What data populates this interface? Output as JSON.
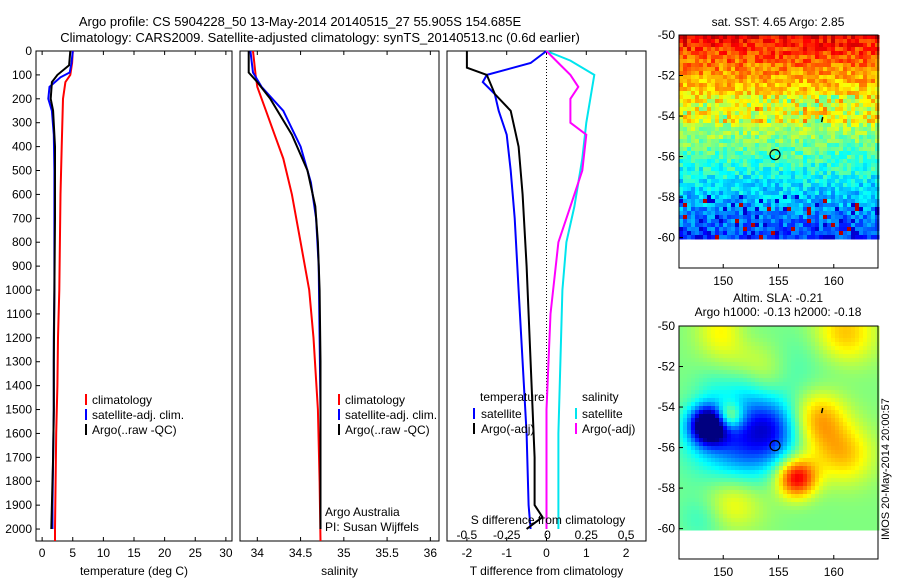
{
  "title_line1": "Argo profile: CS 5904228_50 13-May-2014 20140515_27 55.905S 154.685E",
  "title_line2": "Climatology: CARS2009. Satellite-adjusted climatology: synTS_20140513.nc (0.6d earlier)",
  "credit_left": "Argo Australia",
  "credit_pi": "PI: Susan Wijffels",
  "side_stamp": "IMOS 20-May-2014 20:00:57",
  "colors": {
    "climatology": "#ff0000",
    "satellite": "#0000ff",
    "argo": "#000000",
    "sat_salinity": "#00e5ee",
    "argo_salinity": "#ff00ff"
  },
  "chart_data": [
    {
      "id": "temperature",
      "type": "line",
      "xlabel": "temperature (deg C)",
      "ylim": [
        2050,
        0
      ],
      "xlim": [
        -1,
        31
      ],
      "xticks": [
        0,
        5,
        10,
        15,
        20,
        25,
        30
      ],
      "yticks": [
        0,
        100,
        200,
        300,
        400,
        500,
        600,
        700,
        800,
        900,
        1000,
        1100,
        1200,
        1300,
        1400,
        1500,
        1600,
        1700,
        1800,
        1900,
        2000
      ],
      "legend": [
        "climatology",
        "satellite-adj. clim.",
        "Argo(..raw -QC)"
      ],
      "series": [
        {
          "name": "climatology",
          "color": "#ff0000",
          "points": [
            [
              5.0,
              0
            ],
            [
              4.9,
              50
            ],
            [
              4.6,
              100
            ],
            [
              3.8,
              130
            ],
            [
              3.4,
              200
            ],
            [
              3.2,
              400
            ],
            [
              3.0,
              600
            ],
            [
              2.9,
              800
            ],
            [
              2.8,
              1000
            ],
            [
              2.6,
              1200
            ],
            [
              2.5,
              1400
            ],
            [
              2.3,
              1600
            ],
            [
              2.2,
              1800
            ],
            [
              2.1,
              2000
            ],
            [
              2.1,
              2050
            ]
          ]
        },
        {
          "name": "satellite-adj. clim.",
          "color": "#0000ff",
          "points": [
            [
              5.0,
              0
            ],
            [
              4.8,
              50
            ],
            [
              4.5,
              90
            ],
            [
              3.0,
              110
            ],
            [
              1.2,
              150
            ],
            [
              1.0,
              200
            ],
            [
              1.6,
              250
            ],
            [
              1.9,
              350
            ],
            [
              2.0,
              500
            ],
            [
              2.0,
              800
            ],
            [
              2.0,
              1000
            ],
            [
              1.9,
              1200
            ],
            [
              1.9,
              1500
            ],
            [
              1.8,
              1700
            ],
            [
              1.7,
              1900
            ],
            [
              1.7,
              2000
            ]
          ]
        },
        {
          "name": "Argo(..raw -QC)",
          "color": "#000000",
          "points": [
            [
              4.6,
              0
            ],
            [
              4.5,
              30
            ],
            [
              4.4,
              60
            ],
            [
              2.5,
              100
            ],
            [
              1.6,
              130
            ],
            [
              1.4,
              200
            ],
            [
              1.8,
              250
            ],
            [
              2.1,
              400
            ],
            [
              2.1,
              700
            ],
            [
              2.0,
              1000
            ],
            [
              1.9,
              1300
            ],
            [
              1.9,
              1500
            ],
            [
              1.8,
              1700
            ],
            [
              1.6,
              1900
            ],
            [
              1.5,
              2000
            ]
          ]
        }
      ]
    },
    {
      "id": "salinity",
      "type": "line",
      "xlabel": "salinity",
      "ylim": [
        2050,
        0
      ],
      "xlim": [
        33.8,
        36.1
      ],
      "xticks": [
        34,
        34.5,
        35,
        35.5,
        36
      ],
      "legend": [
        "climatology",
        "satellite-adj. clim.",
        "Argo(..raw -QC)"
      ],
      "series": [
        {
          "name": "climatology",
          "color": "#ff0000",
          "points": [
            [
              33.95,
              0
            ],
            [
              33.98,
              100
            ],
            [
              34.0,
              150
            ],
            [
              34.1,
              250
            ],
            [
              34.2,
              350
            ],
            [
              34.3,
              450
            ],
            [
              34.4,
              600
            ],
            [
              34.5,
              800
            ],
            [
              34.6,
              1000
            ],
            [
              34.65,
              1200
            ],
            [
              34.7,
              1500
            ],
            [
              34.72,
              1800
            ],
            [
              34.73,
              2050
            ]
          ]
        },
        {
          "name": "satellite-adj. clim.",
          "color": "#0000ff",
          "points": [
            [
              33.92,
              0
            ],
            [
              33.95,
              90
            ],
            [
              34.05,
              150
            ],
            [
              34.3,
              250
            ],
            [
              34.5,
              400
            ],
            [
              34.62,
              550
            ],
            [
              34.68,
              700
            ],
            [
              34.71,
              900
            ],
            [
              34.72,
              1200
            ],
            [
              34.73,
              1500
            ],
            [
              34.73,
              2000
            ]
          ]
        },
        {
          "name": "Argo(..raw -QC)",
          "color": "#000000",
          "points": [
            [
              33.9,
              0
            ],
            [
              33.9,
              90
            ],
            [
              34.0,
              130
            ],
            [
              34.15,
              200
            ],
            [
              34.4,
              350
            ],
            [
              34.58,
              500
            ],
            [
              34.67,
              650
            ],
            [
              34.7,
              800
            ],
            [
              34.72,
              1000
            ],
            [
              34.73,
              1300
            ],
            [
              34.73,
              2000
            ]
          ]
        }
      ]
    },
    {
      "id": "difference",
      "type": "line",
      "xlabel": "T difference from climatology",
      "xlabel_top": "S difference from climatology",
      "ylim": [
        2050,
        0
      ],
      "xlim": [
        -2.5,
        2.5
      ],
      "xticks": [
        -2,
        -1,
        0,
        1,
        2
      ],
      "xticks_top": [
        "-0.5",
        "-0.25",
        "0",
        "0.25",
        "0.5"
      ],
      "legend_temperature_title": "temperature",
      "legend_salinity_title": "salinity",
      "legend_temperature": [
        "satellite",
        "Argo(-adj)"
      ],
      "legend_salinity": [
        "satellite",
        "Argo(-adj)"
      ],
      "series": [
        {
          "name": "satellite",
          "group": "temperature",
          "color": "#0000ff",
          "points": [
            [
              0.0,
              0
            ],
            [
              -0.4,
              50
            ],
            [
              -1.5,
              100
            ],
            [
              -1.6,
              130
            ],
            [
              -1.3,
              180
            ],
            [
              -1.2,
              250
            ],
            [
              -1.0,
              350
            ],
            [
              -0.9,
              500
            ],
            [
              -0.8,
              700
            ],
            [
              -0.7,
              1000
            ],
            [
              -0.6,
              1300
            ],
            [
              -0.5,
              1600
            ],
            [
              -0.45,
              1900
            ],
            [
              -0.4,
              2000
            ]
          ]
        },
        {
          "name": "Argo(-adj)",
          "group": "temperature",
          "color": "#000000",
          "points": [
            [
              -2.0,
              0
            ],
            [
              -2.0,
              50
            ],
            [
              -2.0,
              70
            ],
            [
              -1.5,
              100
            ],
            [
              -1.3,
              180
            ],
            [
              -0.9,
              250
            ],
            [
              -0.7,
              400
            ],
            [
              -0.6,
              600
            ],
            [
              -0.5,
              900
            ],
            [
              -0.4,
              1300
            ],
            [
              -0.3,
              1700
            ],
            [
              -0.3,
              1900
            ],
            [
              -0.1,
              1950
            ],
            [
              -0.5,
              2000
            ]
          ]
        },
        {
          "name": "satellite",
          "group": "salinity",
          "color": "#00e5ee",
          "points": [
            [
              0.0,
              0
            ],
            [
              0.6,
              40
            ],
            [
              1.2,
              100
            ],
            [
              1.1,
              200
            ],
            [
              1.0,
              300
            ],
            [
              0.9,
              450
            ],
            [
              0.7,
              650
            ],
            [
              0.5,
              800
            ],
            [
              0.4,
              1000
            ],
            [
              0.35,
              1300
            ],
            [
              0.3,
              1600
            ],
            [
              0.3,
              2000
            ]
          ]
        },
        {
          "name": "Argo(-adj)",
          "group": "salinity",
          "color": "#ff00ff",
          "points": [
            [
              0.0,
              0
            ],
            [
              0.3,
              50
            ],
            [
              0.6,
              100
            ],
            [
              0.8,
              150
            ],
            [
              0.6,
              200
            ],
            [
              0.6,
              300
            ],
            [
              1.0,
              350
            ],
            [
              0.9,
              500
            ],
            [
              0.6,
              650
            ],
            [
              0.3,
              800
            ],
            [
              0.1,
              1100
            ],
            [
              0.0,
              1500
            ],
            [
              0.0,
              2000
            ]
          ]
        }
      ]
    },
    {
      "id": "sst-map",
      "type": "heatmap",
      "title": "sat. SST: 4.65 Argo: 2.85",
      "xlim": [
        146,
        164
      ],
      "ylim": [
        -61.5,
        -50
      ],
      "data_ylim": [
        -60,
        -50
      ],
      "xticks": [
        150,
        155,
        160
      ],
      "yticks": [
        -50,
        -52,
        -54,
        -56,
        -58,
        -60
      ],
      "marker": [
        154.685,
        -55.905
      ]
    },
    {
      "id": "sla-map",
      "type": "heatmap",
      "title_line1": "Altim. SLA: -0.21",
      "title_line2": "Argo h1000: -0.13 h2000: -0.18",
      "xlim": [
        146,
        164
      ],
      "ylim": [
        -61.5,
        -50
      ],
      "data_ylim": [
        -60,
        -50
      ],
      "xticks": [
        150,
        155,
        160
      ],
      "yticks": [
        -50,
        -52,
        -54,
        -56,
        -58,
        -60
      ],
      "marker": [
        154.685,
        -55.905
      ]
    }
  ]
}
